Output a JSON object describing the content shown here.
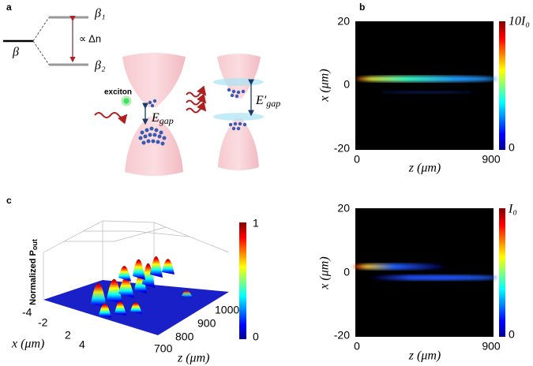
{
  "panel_a": {
    "label": "a",
    "beta": "β",
    "beta1": "β₁",
    "beta2": "β₂",
    "delta": "∝ Δn",
    "exciton": "exciton",
    "gap": {
      "base": "E",
      "sub": "gap"
    },
    "gap2": {
      "base": "E′",
      "sub": "gap"
    }
  },
  "panel_b": {
    "label": "b",
    "yticks": [
      "20",
      "0",
      "-20"
    ],
    "xticks": [
      "0",
      "900"
    ],
    "xlabel": "z (μm)",
    "ylabel": "x (μm)",
    "colorbar": [
      "10I₀",
      "0"
    ]
  },
  "panel_b2": {
    "yticks": [
      "20",
      "0",
      "-20"
    ],
    "xticks": [
      "0",
      "900"
    ],
    "xlabel": "z (μm)",
    "ylabel": "x (μm)",
    "colorbar": [
      "I₀",
      "0"
    ]
  },
  "panel_c": {
    "label": "c",
    "zlabel": {
      "base": "Normalized P",
      "sub": "out"
    },
    "xticks": [
      "-4",
      "-2",
      "2",
      "4"
    ],
    "zticks": [
      "700",
      "800",
      "900",
      "1000"
    ],
    "xlabel": "x (μm)",
    "ylabel": "z (μm)",
    "colorbar": [
      "1",
      "0"
    ]
  }
}
